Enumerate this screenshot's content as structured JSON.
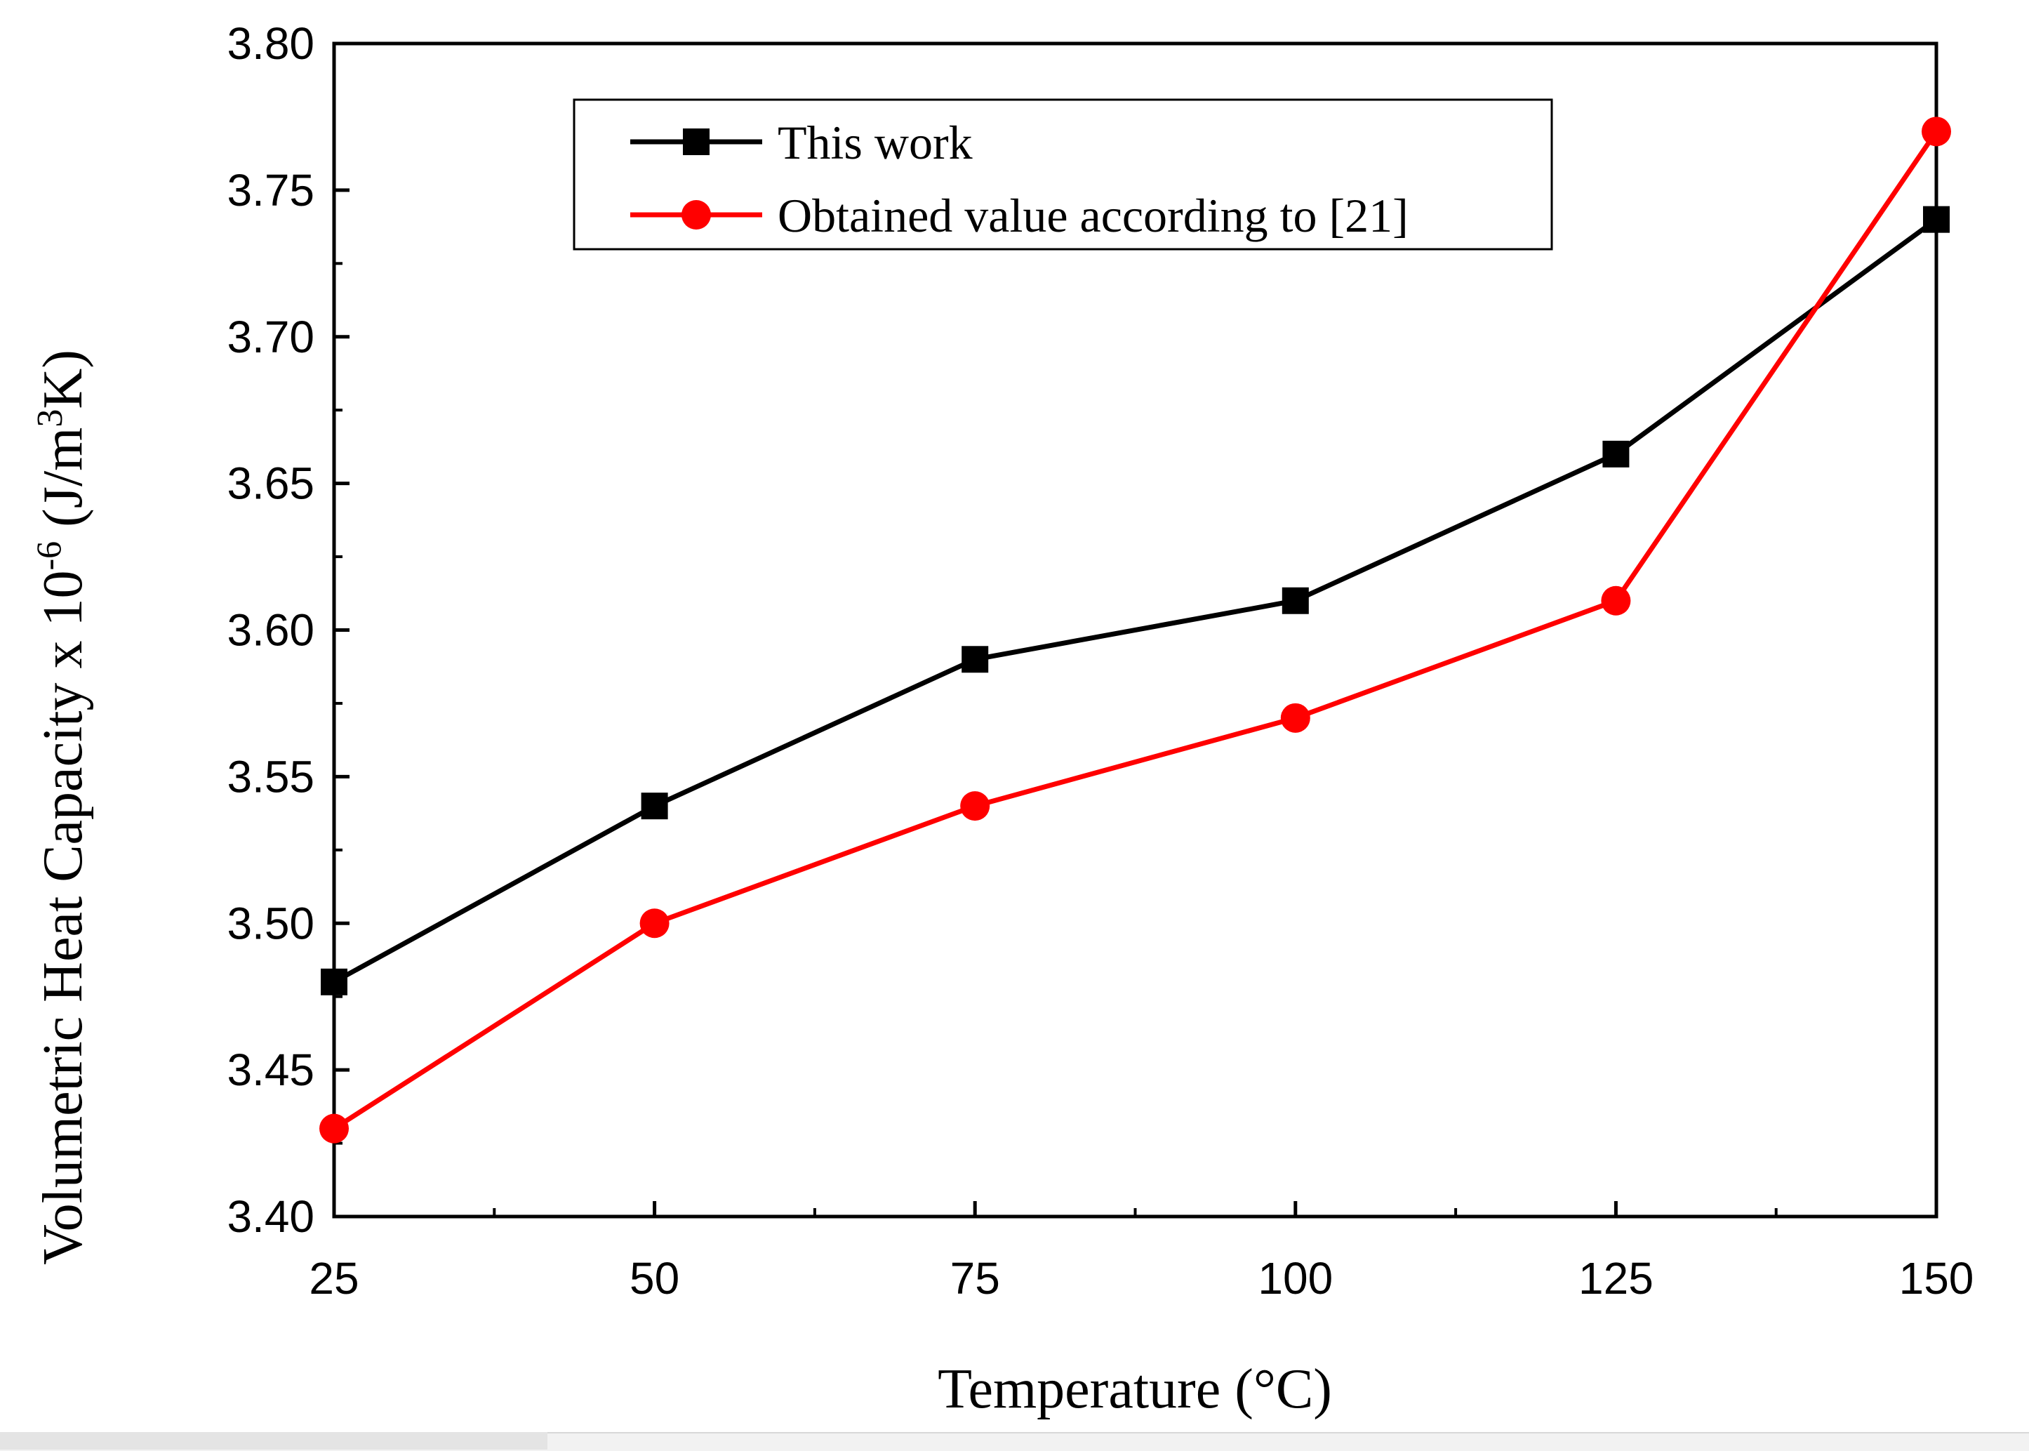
{
  "chart_data": {
    "type": "line",
    "title": "",
    "xlabel": "Temperature (°C)",
    "ylabel": {
      "prefix": "Volumetric Heat Capacity x 10",
      "exponent": "-6",
      "unit_open": " (J/m",
      "unit_power": "3",
      "unit_close": "K)"
    },
    "x": [
      25,
      50,
      75,
      100,
      125,
      150
    ],
    "xlim": [
      25,
      150
    ],
    "ylim": [
      3.4,
      3.8
    ],
    "xticks": [
      "25",
      "50",
      "75",
      "100",
      "125",
      "150"
    ],
    "yticks": [
      "3.40",
      "3.45",
      "3.50",
      "3.55",
      "3.60",
      "3.65",
      "3.70",
      "3.75",
      "3.80"
    ],
    "grid": false,
    "legend_position": "top-center",
    "series": [
      {
        "name": "This work",
        "color": "#000000",
        "marker": "square",
        "values": [
          3.48,
          3.54,
          3.59,
          3.61,
          3.66,
          3.74
        ]
      },
      {
        "name": "Obtained value according to [21]",
        "color": "#ff0000",
        "marker": "circle",
        "values": [
          3.43,
          3.5,
          3.54,
          3.57,
          3.61,
          3.77
        ]
      }
    ]
  }
}
